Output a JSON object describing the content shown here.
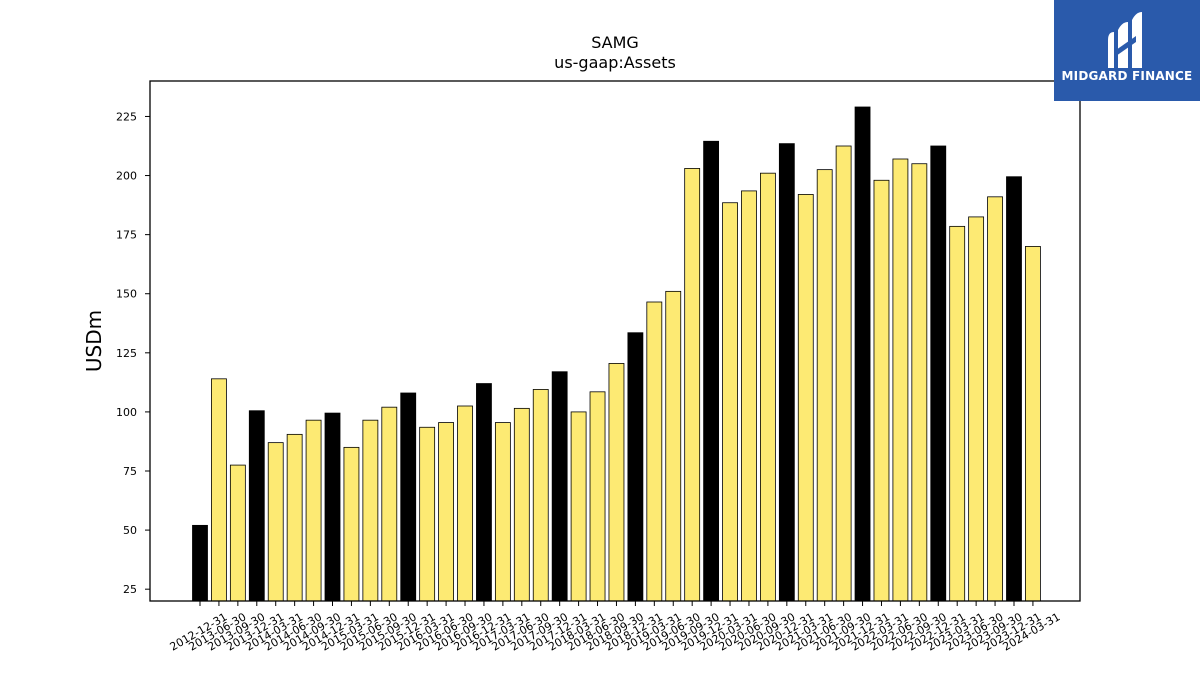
{
  "branding": {
    "logo_text": "MIDGARD FINANCE",
    "logo_bg": "#2a5aab"
  },
  "colors": {
    "annual_bar": "#000000",
    "quarter_bar": "#fdea73",
    "bar_edge": "#000000"
  },
  "chart_data": {
    "type": "bar",
    "title": "SAMG",
    "subtitle": "us-gaap:Assets",
    "xlabel": "",
    "ylabel": "USDm",
    "ylim": [
      20,
      240
    ],
    "yticks": [
      25,
      50,
      75,
      100,
      125,
      150,
      175,
      200,
      225
    ],
    "grid": false,
    "categories": [
      "2012-12-31",
      "2013-06-30",
      "2013-09-30",
      "2013-12-31",
      "2014-03-31",
      "2014-06-30",
      "2014-09-30",
      "2014-12-31",
      "2015-03-31",
      "2015-06-30",
      "2015-09-30",
      "2015-12-31",
      "2016-03-31",
      "2016-06-30",
      "2016-09-30",
      "2016-12-31",
      "2017-03-31",
      "2017-06-30",
      "2017-09-30",
      "2017-12-31",
      "2018-03-31",
      "2018-06-30",
      "2018-09-30",
      "2018-12-31",
      "2019-03-31",
      "2019-06-30",
      "2019-09-30",
      "2019-12-31",
      "2020-03-31",
      "2020-06-30",
      "2020-09-30",
      "2020-12-31",
      "2021-03-31",
      "2021-06-30",
      "2021-09-30",
      "2021-12-31",
      "2022-03-31",
      "2022-06-30",
      "2022-09-30",
      "2022-12-31",
      "2023-03-31",
      "2023-06-30",
      "2023-09-30",
      "2023-12-31",
      "2024-03-31"
    ],
    "values": [
      52,
      114,
      77.5,
      100.5,
      87,
      90.5,
      96.5,
      99.5,
      85,
      96.5,
      102,
      108,
      93.5,
      95.5,
      102.5,
      112,
      95.5,
      101.5,
      109.5,
      117,
      100,
      108.5,
      120.5,
      133.5,
      146.5,
      151,
      203,
      214.5,
      188.5,
      193.5,
      201,
      213.5,
      192,
      202.5,
      212.5,
      229,
      198,
      207,
      205,
      212.5,
      178.5,
      182.5,
      191,
      199.5,
      170
    ],
    "annual_flags": [
      true,
      false,
      false,
      true,
      false,
      false,
      false,
      true,
      false,
      false,
      false,
      true,
      false,
      false,
      false,
      true,
      false,
      false,
      false,
      true,
      false,
      false,
      false,
      true,
      false,
      false,
      false,
      true,
      false,
      false,
      false,
      true,
      false,
      false,
      false,
      true,
      false,
      false,
      false,
      true,
      false,
      false,
      false,
      true,
      false
    ]
  }
}
